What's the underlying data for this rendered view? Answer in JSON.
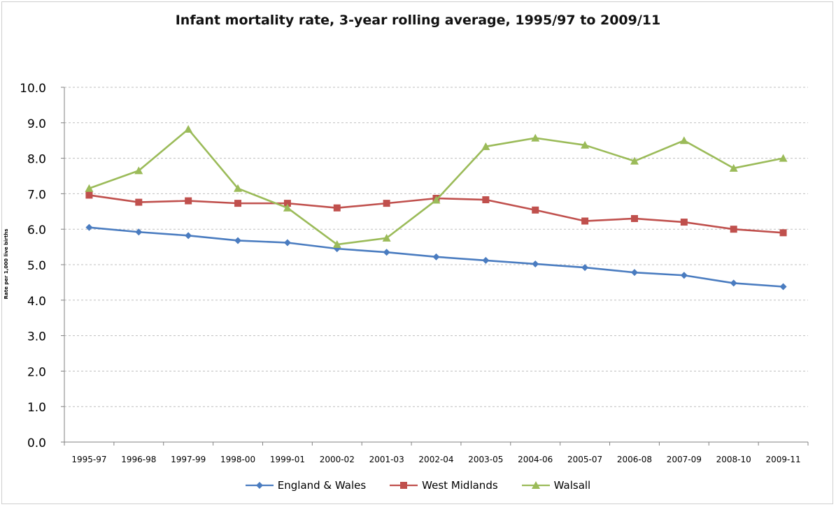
{
  "chart_data": {
    "type": "line",
    "title": "Infant mortality rate, 3-year rolling average, 1995/97 to 2009/11",
    "ylabel": "Rate per 1,000 live births",
    "xlabel": "",
    "categories": [
      "1995-97",
      "1996-98",
      "1997-99",
      "1998-00",
      "1999-01",
      "2000-02",
      "2001-03",
      "2002-04",
      "2003-05",
      "2004-06",
      "2005-07",
      "2006-08",
      "2007-09",
      "2008-10",
      "2009-11"
    ],
    "yticks": [
      "0.0",
      "1.0",
      "2.0",
      "3.0",
      "4.0",
      "5.0",
      "6.0",
      "7.0",
      "8.0",
      "9.0",
      "10.0"
    ],
    "ylim": [
      0,
      10
    ],
    "grid": "horizontal dashed",
    "legend_position": "bottom",
    "series": [
      {
        "name": "England & Wales",
        "color": "#4a7cc0",
        "marker": "diamond",
        "values": [
          6.05,
          5.92,
          5.82,
          5.68,
          5.62,
          5.45,
          5.35,
          5.22,
          5.12,
          5.02,
          4.92,
          4.78,
          4.7,
          4.48,
          4.38
        ]
      },
      {
        "name": "West Midlands",
        "color": "#c0504d",
        "marker": "square",
        "values": [
          6.96,
          6.76,
          6.8,
          6.73,
          6.73,
          6.6,
          6.73,
          6.87,
          6.83,
          6.54,
          6.23,
          6.3,
          6.2,
          6.0,
          5.9
        ]
      },
      {
        "name": "Walsall",
        "color": "#9bbb59",
        "marker": "triangle",
        "values": [
          7.15,
          7.65,
          8.82,
          7.15,
          6.6,
          5.57,
          5.75,
          6.82,
          8.33,
          8.57,
          8.37,
          7.92,
          8.5,
          7.72,
          8.0
        ]
      }
    ]
  }
}
